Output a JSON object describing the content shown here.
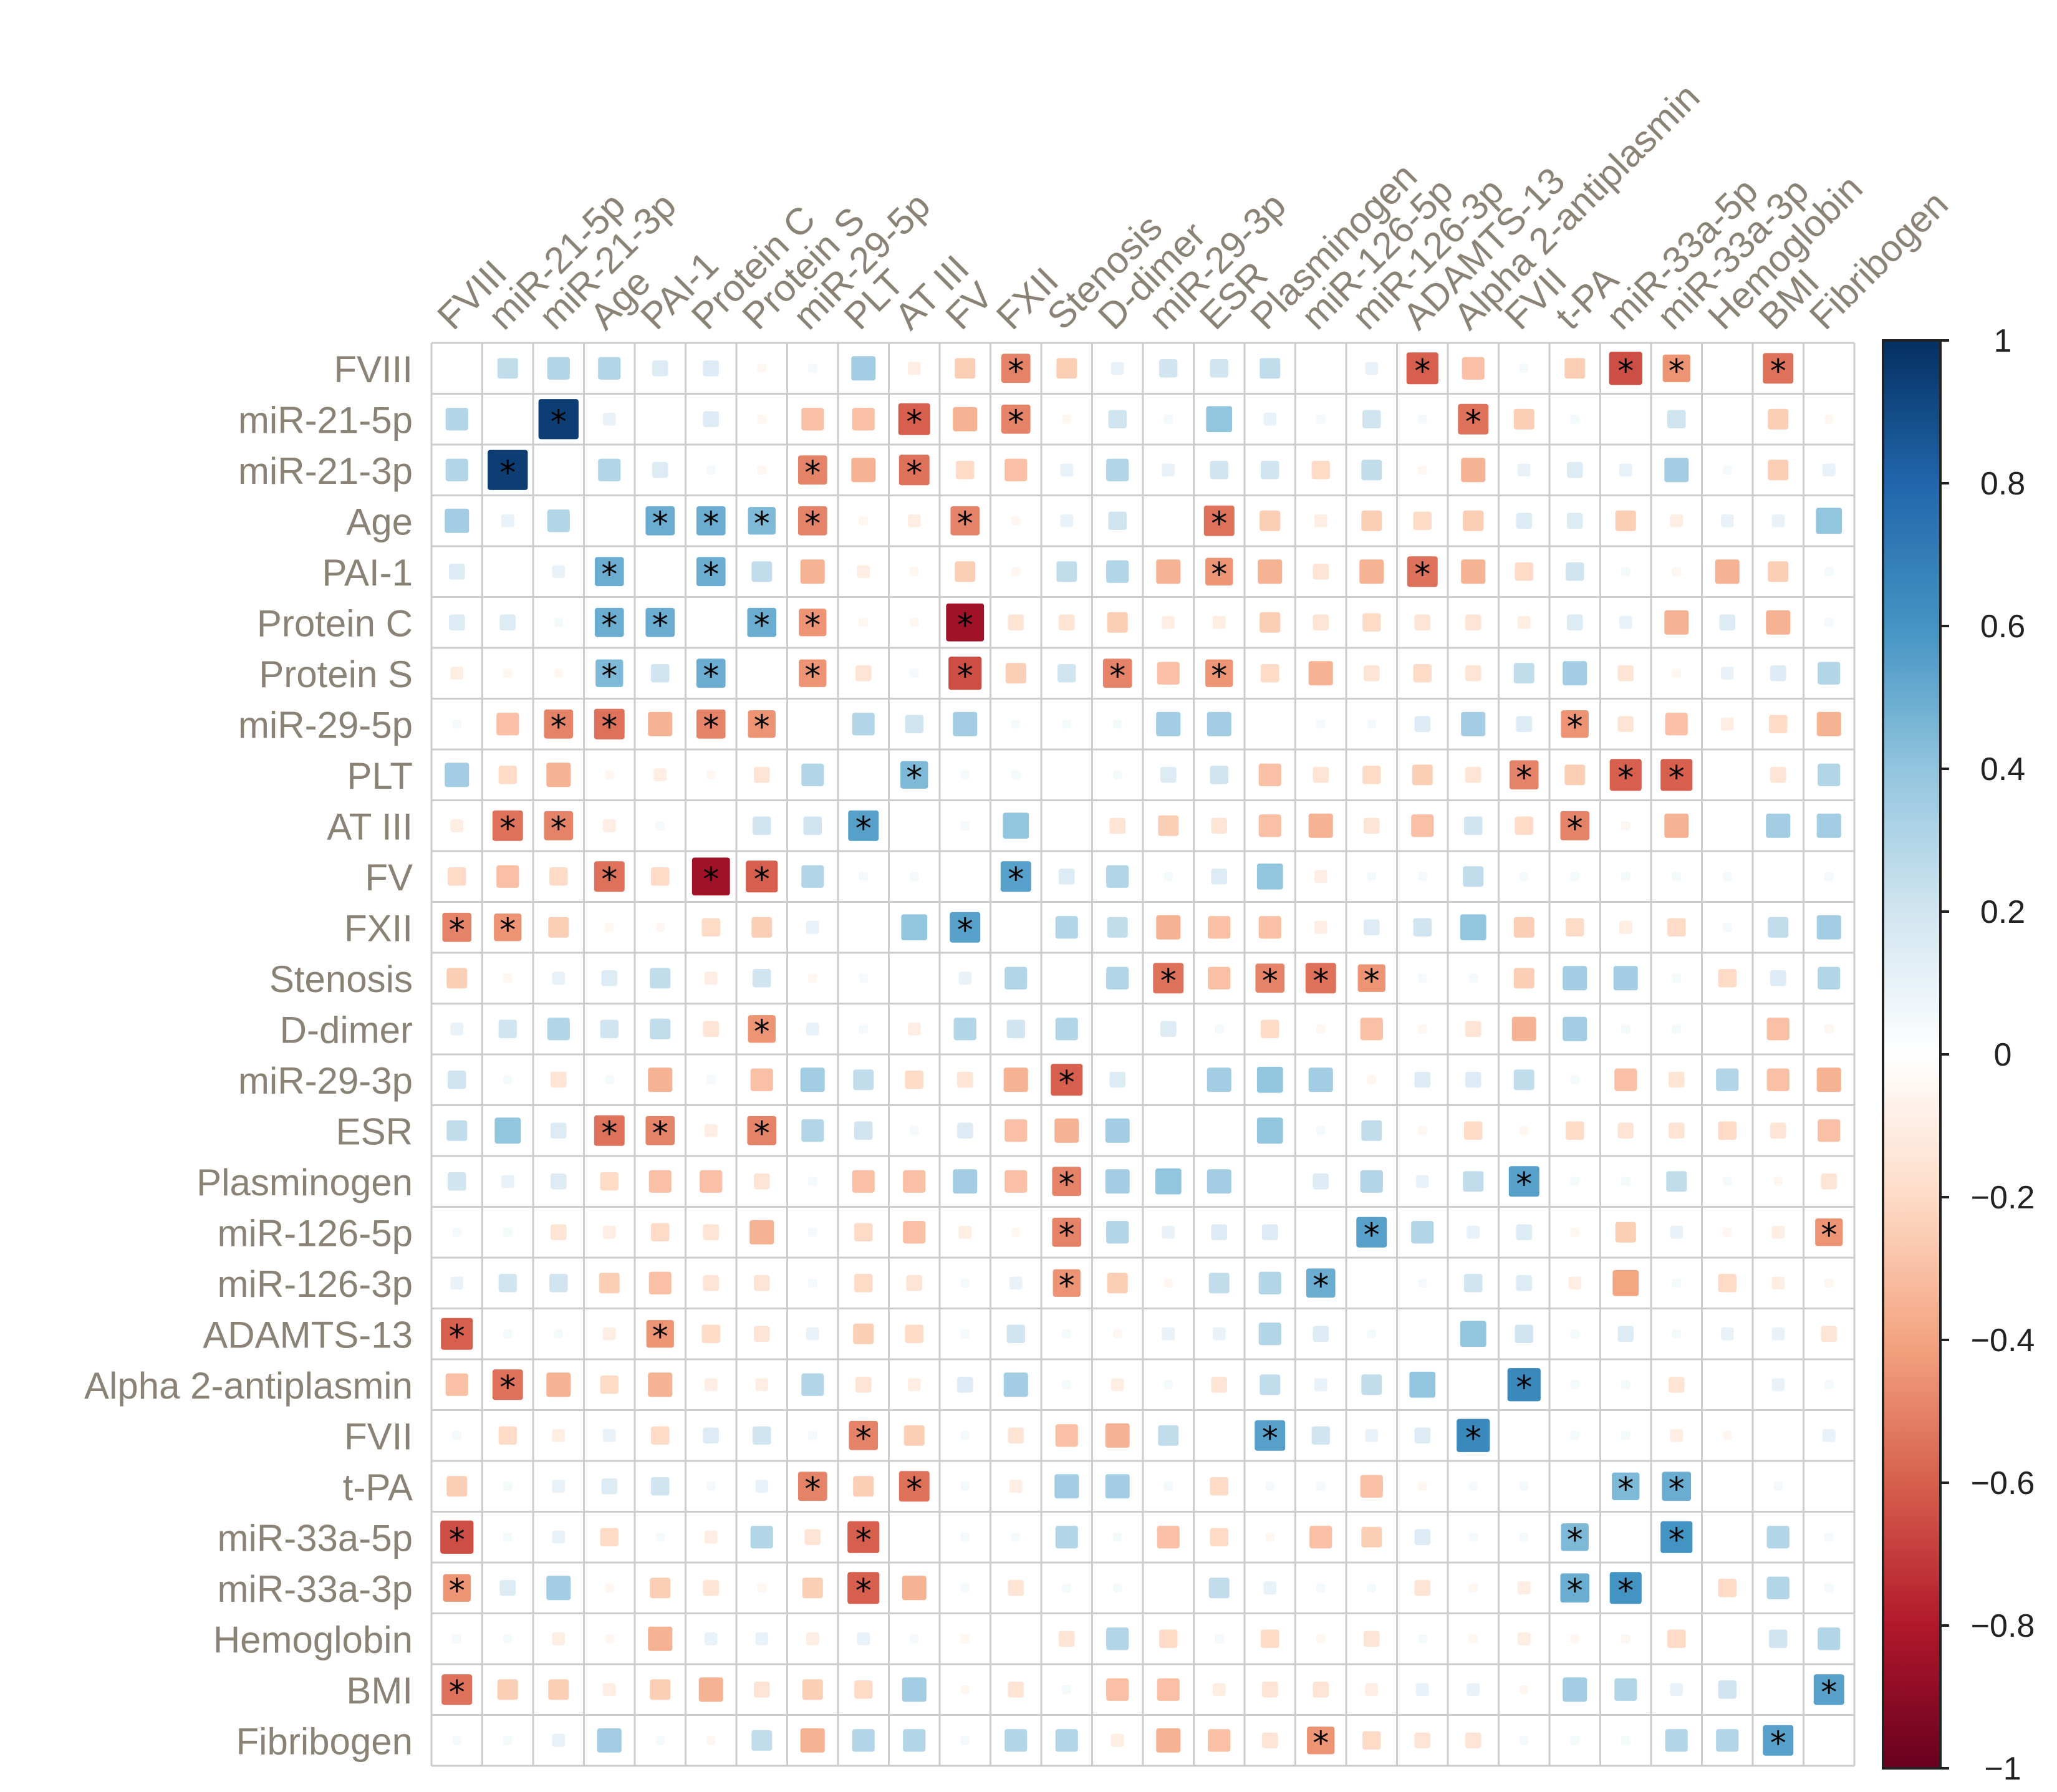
{
  "chart_data": {
    "type": "heatmap",
    "subtype": "correlation-matrix",
    "labels": [
      "FVIII",
      "miR-21-5p",
      "miR-21-3p",
      "Age",
      "PAI-1",
      "Protein C",
      "Protein S",
      "miR-29-5p",
      "PLT",
      "AT III",
      "FV",
      "FXII",
      "Stenosis",
      "D-dimer",
      "miR-29-3p",
      "ESR",
      "Plasminogen",
      "miR-126-5p",
      "miR-126-3p",
      "ADAMTS-13",
      "Alpha 2-antiplasmin",
      "FVII",
      "t-PA",
      "miR-33a-5p",
      "miR-33a-3p",
      "Hemoglobin",
      "BMI",
      "Fibribogen"
    ],
    "matrix": [
      [
        0,
        0.25,
        0.3,
        0.3,
        0.15,
        0.15,
        -0.05,
        0.05,
        0.35,
        -0.1,
        -0.25,
        -0.5,
        -0.25,
        0.1,
        0.2,
        0.2,
        0.25,
        0,
        0.1,
        -0.6,
        -0.3,
        0.05,
        -0.25,
        -0.65,
        -0.45,
        0,
        -0.55,
        0
      ],
      [
        0.3,
        0,
        0.95,
        0.1,
        0,
        0.15,
        -0.05,
        -0.3,
        -0.3,
        -0.6,
        -0.35,
        -0.5,
        -0.05,
        0.2,
        0.05,
        0.4,
        0.1,
        0.05,
        0.2,
        0.05,
        -0.55,
        -0.25,
        0.05,
        0,
        0.2,
        0,
        -0.25,
        -0.05
      ],
      [
        0.3,
        0.95,
        0,
        0.3,
        0.15,
        0.05,
        -0.05,
        -0.5,
        -0.35,
        -0.55,
        -0.2,
        -0.3,
        0.1,
        0.3,
        0.1,
        0.2,
        0.2,
        -0.2,
        0.25,
        -0.05,
        -0.35,
        0.1,
        0.15,
        0.1,
        0.35,
        0.05,
        -0.25,
        0.1
      ],
      [
        0.35,
        0.1,
        0.3,
        0,
        0.5,
        0.5,
        0.45,
        -0.5,
        -0.05,
        -0.1,
        -0.5,
        -0.05,
        0.1,
        0.2,
        0,
        -0.55,
        -0.25,
        -0.1,
        -0.25,
        -0.2,
        -0.25,
        0.15,
        0.15,
        -0.25,
        -0.1,
        0.1,
        0.1,
        0.4
      ],
      [
        0.15,
        0,
        0.1,
        0.5,
        0,
        0.5,
        0.25,
        -0.35,
        -0.1,
        -0.05,
        -0.25,
        -0.05,
        0.25,
        0.3,
        -0.35,
        -0.45,
        -0.35,
        -0.15,
        -0.35,
        -0.55,
        -0.35,
        -0.2,
        0.2,
        0.05,
        -0.05,
        -0.35,
        -0.25,
        0.05
      ],
      [
        0.15,
        0.15,
        0.05,
        0.5,
        0.5,
        0,
        0.5,
        -0.45,
        -0.05,
        -0.05,
        -0.85,
        -0.15,
        -0.15,
        -0.25,
        -0.1,
        -0.1,
        -0.25,
        -0.15,
        -0.2,
        -0.15,
        -0.15,
        -0.1,
        0.15,
        0.1,
        -0.35,
        0.15,
        -0.35,
        0.05
      ],
      [
        -0.1,
        -0.05,
        -0.05,
        0.45,
        0.2,
        0.5,
        0,
        -0.45,
        -0.15,
        0.05,
        -0.65,
        -0.25,
        0.2,
        -0.5,
        -0.3,
        -0.45,
        -0.2,
        -0.35,
        -0.15,
        -0.2,
        -0.15,
        0.25,
        0.35,
        -0.15,
        -0.05,
        0.1,
        0.15,
        0.3
      ],
      [
        0.05,
        -0.3,
        -0.5,
        -0.55,
        -0.35,
        -0.5,
        -0.45,
        0,
        0.3,
        0.2,
        0.35,
        0.05,
        0.05,
        0.05,
        0.35,
        0.35,
        0,
        0.05,
        0.05,
        0.15,
        0.35,
        0.15,
        -0.45,
        -0.15,
        -0.3,
        -0.1,
        -0.2,
        -0.35
      ],
      [
        0.35,
        -0.2,
        -0.35,
        -0.05,
        -0.1,
        -0.05,
        -0.15,
        0.3,
        0,
        0.45,
        0.05,
        0.05,
        0,
        0.05,
        0.15,
        0.2,
        -0.3,
        -0.15,
        -0.2,
        -0.25,
        -0.15,
        -0.5,
        -0.25,
        -0.6,
        -0.6,
        0,
        -0.15,
        0.3
      ],
      [
        -0.1,
        -0.55,
        -0.5,
        -0.1,
        0.05,
        0,
        0.2,
        0.2,
        0.55,
        0,
        0.05,
        0.4,
        0,
        -0.15,
        -0.25,
        -0.15,
        -0.3,
        -0.35,
        -0.15,
        -0.3,
        0.2,
        -0.2,
        -0.5,
        -0.05,
        -0.35,
        0,
        0.35,
        0.35
      ],
      [
        -0.2,
        -0.3,
        -0.2,
        -0.55,
        -0.2,
        -0.85,
        -0.6,
        0.3,
        0.05,
        0.05,
        0,
        0.55,
        0.15,
        0.3,
        0.05,
        0.15,
        0.4,
        -0.1,
        0.05,
        0.05,
        0.25,
        0.05,
        0.05,
        0.05,
        0.05,
        0.05,
        0,
        0.05
      ],
      [
        -0.5,
        -0.45,
        -0.25,
        -0.05,
        -0.05,
        -0.2,
        -0.25,
        0.1,
        0,
        0.4,
        0.55,
        0,
        0.3,
        0.25,
        -0.35,
        -0.3,
        -0.3,
        -0.1,
        0.15,
        0.2,
        0.4,
        -0.25,
        -0.2,
        -0.1,
        -0.2,
        0.05,
        0.25,
        0.35
      ],
      [
        -0.25,
        -0.05,
        0.1,
        0.15,
        0.25,
        -0.1,
        0.2,
        -0.05,
        0.05,
        0,
        0.1,
        0.3,
        0,
        0.3,
        -0.55,
        -0.3,
        -0.5,
        -0.55,
        -0.45,
        0.05,
        0.05,
        -0.25,
        0.35,
        0.35,
        0.05,
        -0.2,
        0.15,
        0.3
      ],
      [
        0.1,
        0.2,
        0.3,
        0.2,
        0.25,
        -0.15,
        -0.45,
        0.1,
        0.05,
        -0.1,
        0.3,
        0.2,
        0.3,
        0,
        0.15,
        0.05,
        -0.2,
        -0.05,
        -0.3,
        -0.05,
        -0.15,
        -0.35,
        0.35,
        0.05,
        0.05,
        0,
        -0.3,
        -0.05
      ],
      [
        0.2,
        0.05,
        -0.15,
        0.05,
        -0.35,
        0.05,
        -0.3,
        0.35,
        0.25,
        -0.2,
        -0.15,
        -0.35,
        -0.6,
        0.15,
        0,
        0.35,
        0.4,
        0.35,
        -0.05,
        0.15,
        0.15,
        0.25,
        0.05,
        -0.3,
        -0.15,
        0.3,
        -0.3,
        -0.35
      ],
      [
        0.25,
        0.4,
        0.15,
        -0.55,
        -0.5,
        -0.1,
        -0.5,
        0.3,
        0.2,
        0.05,
        0.15,
        -0.3,
        -0.35,
        0.35,
        0,
        0,
        0.4,
        0.05,
        0.25,
        -0.05,
        -0.2,
        -0.05,
        -0.2,
        -0.15,
        -0.15,
        -0.2,
        -0.15,
        -0.3
      ],
      [
        0.2,
        0.1,
        0.15,
        -0.2,
        -0.3,
        -0.3,
        -0.15,
        0.05,
        -0.3,
        -0.3,
        0.35,
        -0.3,
        -0.5,
        0.35,
        0.4,
        0.35,
        0,
        0.15,
        0.3,
        0.1,
        0.25,
        0.55,
        0.05,
        0.05,
        0.25,
        0.05,
        -0.05,
        -0.15
      ],
      [
        0.05,
        0.05,
        -0.15,
        -0.1,
        -0.2,
        -0.15,
        -0.35,
        0.05,
        -0.2,
        -0.3,
        -0.1,
        -0.05,
        -0.5,
        0.3,
        0.1,
        0.15,
        0.15,
        0,
        0.55,
        0.3,
        0.1,
        0.15,
        -0.05,
        -0.25,
        0.1,
        -0.05,
        -0.1,
        -0.45
      ],
      [
        0.1,
        0.2,
        0.2,
        -0.25,
        -0.3,
        -0.15,
        -0.15,
        0.05,
        -0.2,
        -0.15,
        0.05,
        0.1,
        -0.45,
        -0.25,
        -0.05,
        0.25,
        0.3,
        0.5,
        0,
        0.05,
        0.2,
        0.15,
        -0.1,
        -0.4,
        0.05,
        -0.2,
        -0.1,
        -0.05
      ],
      [
        -0.6,
        0.05,
        0.05,
        -0.1,
        -0.45,
        -0.2,
        -0.15,
        0.1,
        -0.25,
        -0.2,
        0.05,
        0.2,
        0.05,
        -0.05,
        0.1,
        0.1,
        0.3,
        0.15,
        0.05,
        0,
        0.4,
        0.2,
        0.05,
        0.15,
        0.05,
        0.1,
        0.1,
        -0.15
      ],
      [
        -0.3,
        -0.55,
        -0.35,
        -0.2,
        -0.35,
        -0.1,
        -0.1,
        0.3,
        -0.15,
        -0.1,
        0.15,
        0.35,
        0.05,
        -0.1,
        0.05,
        -0.15,
        0.25,
        0.1,
        0.25,
        0.4,
        0,
        0.65,
        0.05,
        0.05,
        -0.15,
        0,
        0.1,
        0.05
      ],
      [
        0.05,
        -0.2,
        -0.1,
        0.1,
        -0.2,
        0.15,
        0.2,
        0.05,
        -0.5,
        -0.25,
        0.05,
        -0.15,
        -0.3,
        -0.35,
        0.25,
        0,
        0.55,
        0.2,
        0.1,
        0.15,
        0.65,
        0,
        0.05,
        0.05,
        -0.1,
        -0.05,
        0,
        0.1
      ],
      [
        -0.25,
        0.05,
        0.1,
        0.15,
        0.2,
        0.05,
        0.1,
        -0.5,
        -0.25,
        -0.55,
        0.05,
        -0.1,
        0.35,
        0.35,
        0.05,
        -0.2,
        0.05,
        0.05,
        -0.3,
        -0.05,
        0.05,
        0.05,
        0,
        0.45,
        0.5,
        0,
        0.05,
        0
      ],
      [
        -0.65,
        0.05,
        0.1,
        -0.2,
        0.05,
        -0.1,
        0.3,
        -0.15,
        -0.6,
        0,
        0.05,
        0.05,
        0.3,
        0.05,
        -0.3,
        -0.2,
        -0.05,
        -0.3,
        -0.25,
        0.15,
        0.05,
        0.05,
        0.45,
        0,
        0.6,
        0,
        0.3,
        0.05
      ],
      [
        -0.45,
        0.15,
        0.35,
        -0.05,
        -0.25,
        -0.15,
        -0.05,
        -0.25,
        -0.6,
        -0.35,
        0.05,
        -0.15,
        0.05,
        0.05,
        0,
        0.25,
        0.1,
        0.05,
        0.05,
        -0.15,
        -0.05,
        -0.1,
        0.5,
        0.6,
        0,
        -0.2,
        0.3,
        0.05
      ],
      [
        0.05,
        0.05,
        -0.1,
        -0.05,
        -0.35,
        0.1,
        0.1,
        -0.1,
        0.1,
        0.05,
        -0.05,
        0,
        -0.15,
        0.3,
        -0.2,
        0.05,
        -0.2,
        -0.05,
        -0.15,
        0.05,
        -0.05,
        -0.1,
        -0.05,
        -0.05,
        -0.2,
        0,
        0.2,
        0.3
      ],
      [
        -0.55,
        -0.25,
        -0.25,
        -0.1,
        -0.25,
        -0.35,
        -0.15,
        -0.25,
        -0.2,
        0.35,
        -0.05,
        -0.15,
        0.05,
        -0.3,
        -0.3,
        -0.1,
        -0.15,
        -0.15,
        -0.1,
        0.1,
        0.1,
        -0.05,
        0.35,
        0.3,
        0.1,
        0.2,
        0,
        0.55
      ],
      [
        0.05,
        0.05,
        0.1,
        0.35,
        0.05,
        -0.05,
        0.25,
        -0.35,
        0.3,
        0.3,
        0.05,
        0.3,
        0.3,
        -0.1,
        -0.35,
        -0.3,
        -0.15,
        -0.45,
        -0.2,
        -0.15,
        -0.15,
        0.05,
        0.05,
        0.05,
        0.3,
        0.3,
        0.55,
        0
      ]
    ],
    "significance_marker": "*",
    "significant": [
      [
        0,
        11
      ],
      [
        0,
        19
      ],
      [
        0,
        23
      ],
      [
        0,
        24
      ],
      [
        0,
        26
      ],
      [
        1,
        2
      ],
      [
        1,
        9
      ],
      [
        1,
        11
      ],
      [
        1,
        20
      ],
      [
        2,
        1
      ],
      [
        2,
        7
      ],
      [
        2,
        9
      ],
      [
        3,
        4
      ],
      [
        3,
        5
      ],
      [
        3,
        6
      ],
      [
        3,
        7
      ],
      [
        3,
        10
      ],
      [
        3,
        15
      ],
      [
        4,
        3
      ],
      [
        4,
        5
      ],
      [
        4,
        15
      ],
      [
        4,
        19
      ],
      [
        5,
        3
      ],
      [
        5,
        4
      ],
      [
        5,
        6
      ],
      [
        5,
        7
      ],
      [
        5,
        10
      ],
      [
        6,
        3
      ],
      [
        6,
        5
      ],
      [
        6,
        7
      ],
      [
        6,
        10
      ],
      [
        6,
        13
      ],
      [
        6,
        15
      ],
      [
        7,
        2
      ],
      [
        7,
        3
      ],
      [
        7,
        5
      ],
      [
        7,
        6
      ],
      [
        7,
        22
      ],
      [
        8,
        9
      ],
      [
        8,
        21
      ],
      [
        8,
        23
      ],
      [
        8,
        24
      ],
      [
        9,
        1
      ],
      [
        9,
        2
      ],
      [
        9,
        8
      ],
      [
        9,
        22
      ],
      [
        10,
        3
      ],
      [
        10,
        5
      ],
      [
        10,
        6
      ],
      [
        10,
        11
      ],
      [
        11,
        0
      ],
      [
        11,
        1
      ],
      [
        11,
        10
      ],
      [
        12,
        14
      ],
      [
        12,
        16
      ],
      [
        12,
        17
      ],
      [
        12,
        18
      ],
      [
        13,
        6
      ],
      [
        14,
        12
      ],
      [
        15,
        3
      ],
      [
        15,
        4
      ],
      [
        15,
        6
      ],
      [
        16,
        12
      ],
      [
        16,
        21
      ],
      [
        17,
        12
      ],
      [
        17,
        18
      ],
      [
        17,
        27
      ],
      [
        18,
        12
      ],
      [
        18,
        17
      ],
      [
        19,
        0
      ],
      [
        19,
        4
      ],
      [
        20,
        1
      ],
      [
        20,
        21
      ],
      [
        21,
        8
      ],
      [
        21,
        16
      ],
      [
        21,
        20
      ],
      [
        22,
        7
      ],
      [
        22,
        9
      ],
      [
        22,
        23
      ],
      [
        22,
        24
      ],
      [
        23,
        0
      ],
      [
        23,
        8
      ],
      [
        23,
        22
      ],
      [
        23,
        24
      ],
      [
        24,
        0
      ],
      [
        24,
        8
      ],
      [
        24,
        22
      ],
      [
        24,
        23
      ],
      [
        26,
        0
      ],
      [
        26,
        27
      ],
      [
        27,
        17
      ],
      [
        27,
        26
      ]
    ],
    "colorbar": {
      "range": [
        -1,
        1
      ],
      "ticks": [
        "1",
        "0.8",
        "0.6",
        "0.4",
        "0.2",
        "0",
        "−0.2",
        "−0.4",
        "−0.6",
        "−0.8",
        "−1"
      ],
      "tick_values": [
        1,
        0.8,
        0.6,
        0.4,
        0.2,
        0,
        -0.2,
        -0.4,
        -0.6,
        -0.8,
        -1
      ],
      "colors": {
        "-1": "#67001f",
        "-0.8": "#b2182b",
        "-0.6": "#d6604d",
        "-0.4": "#f4a582",
        "-0.2": "#fddbc7",
        "0": "#ffffff",
        "0.2": "#d1e5f0",
        "0.4": "#92c5de",
        "0.6": "#4393c3",
        "0.8": "#2166ac",
        "1": "#053061"
      }
    },
    "grid_color": "#cccccc",
    "label_color": "#8a8275",
    "xlabel": "",
    "ylabel": "",
    "title": ""
  }
}
